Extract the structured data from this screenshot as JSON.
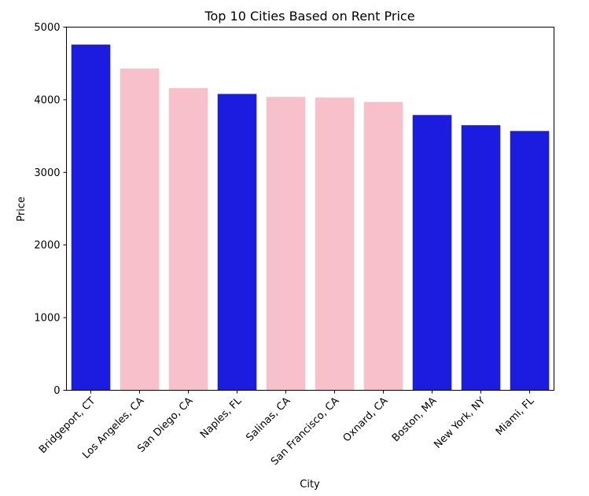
{
  "chart_data": {
    "type": "bar",
    "title": "Top 10 Cities Based on Rent Price",
    "xlabel": "City",
    "ylabel": "Price",
    "ylim": [
      0,
      5000
    ],
    "yticks": [
      0,
      1000,
      2000,
      3000,
      4000,
      5000
    ],
    "grid": false,
    "categories": [
      "Bridgeport, CT",
      "Los Angeles, CA",
      "San Diego, CA",
      "Naples, FL",
      "Salinas, CA",
      "San Francisco, CA",
      "Oxnard, CA",
      "Boston, MA",
      "New York, NY",
      "Miami, FL"
    ],
    "values": [
      4760,
      4430,
      4160,
      4080,
      4040,
      4030,
      3970,
      3790,
      3650,
      3570
    ],
    "bar_colors": [
      "#1c1ce0",
      "#f8c0cb",
      "#f8c0cb",
      "#1c1ce0",
      "#f8c0cb",
      "#f8c0cb",
      "#f8c0cb",
      "#1c1ce0",
      "#1c1ce0",
      "#1c1ce0"
    ]
  }
}
